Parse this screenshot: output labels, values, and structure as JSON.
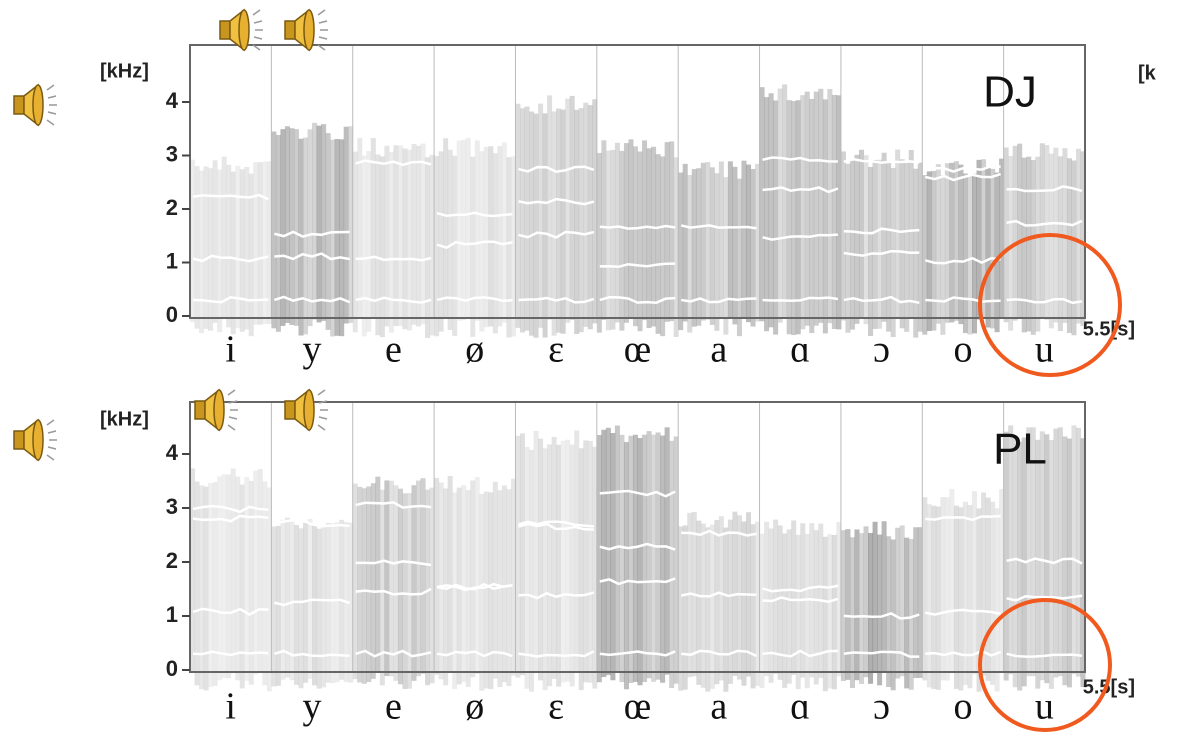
{
  "panels": [
    {
      "speaker": "DJ",
      "unit": "[kHz]",
      "yticks": [
        0,
        1,
        2,
        3,
        4
      ],
      "vowels": [
        "i",
        "y",
        "e",
        "ø",
        "ɛ",
        "œ",
        "a",
        "ɑ",
        "ɔ",
        "o",
        "u"
      ],
      "end_time": "5.5[s]"
    },
    {
      "speaker": "PL",
      "unit": "[kHz]",
      "yticks": [
        0,
        1,
        2,
        3,
        4
      ],
      "vowels": [
        "i",
        "y",
        "e",
        "ø",
        "ɛ",
        "œ",
        "a",
        "ɑ",
        "ɔ",
        "o",
        "u"
      ],
      "end_time": "5.5[s]"
    }
  ],
  "edge_label": "[k"
}
